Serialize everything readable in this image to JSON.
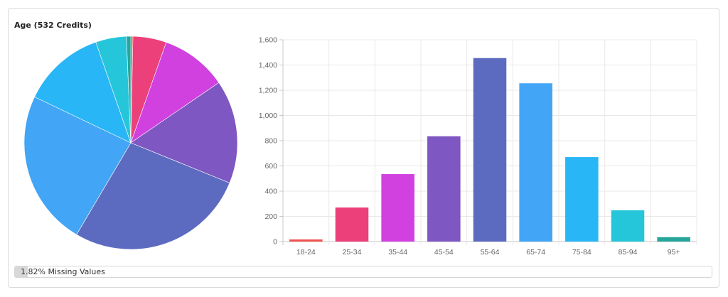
{
  "panel": {
    "title": "Age (532 Credits)",
    "missing": {
      "label": "1.82% Missing Values",
      "percent": 1.82
    }
  },
  "chart_data": [
    {
      "type": "pie",
      "title": "Age (532 Credits)",
      "categories": [
        "18-24",
        "25-34",
        "35-44",
        "45-54",
        "55-64",
        "65-74",
        "75-84",
        "85-94",
        "95+"
      ],
      "values": [
        17,
        270,
        535,
        835,
        1455,
        1255,
        670,
        248,
        35
      ],
      "colors": [
        "#ef5350",
        "#ec407a",
        "#d041e0",
        "#7e57c2",
        "#5c6bc0",
        "#42a5f5",
        "#29b6f6",
        "#26c6da",
        "#26a69a"
      ]
    },
    {
      "type": "bar",
      "title": "",
      "categories": [
        "18-24",
        "25-34",
        "35-44",
        "45-54",
        "55-64",
        "65-74",
        "75-84",
        "85-94",
        "95+"
      ],
      "values": [
        17,
        270,
        535,
        835,
        1455,
        1255,
        670,
        248,
        35
      ],
      "colors": [
        "#ef5350",
        "#ec407a",
        "#d041e0",
        "#7e57c2",
        "#5c6bc0",
        "#42a5f5",
        "#29b6f6",
        "#26c6da",
        "#26a69a"
      ],
      "xlabel": "",
      "ylabel": "",
      "ylim": [
        0,
        1600
      ],
      "yticks": [
        0,
        200,
        400,
        600,
        800,
        1000,
        1200,
        1400,
        1600
      ],
      "ytick_labels": [
        "0",
        "200",
        "400",
        "600",
        "800",
        "1,000",
        "1,200",
        "1,400",
        "1,600"
      ],
      "grid": true,
      "legend": "none"
    }
  ]
}
